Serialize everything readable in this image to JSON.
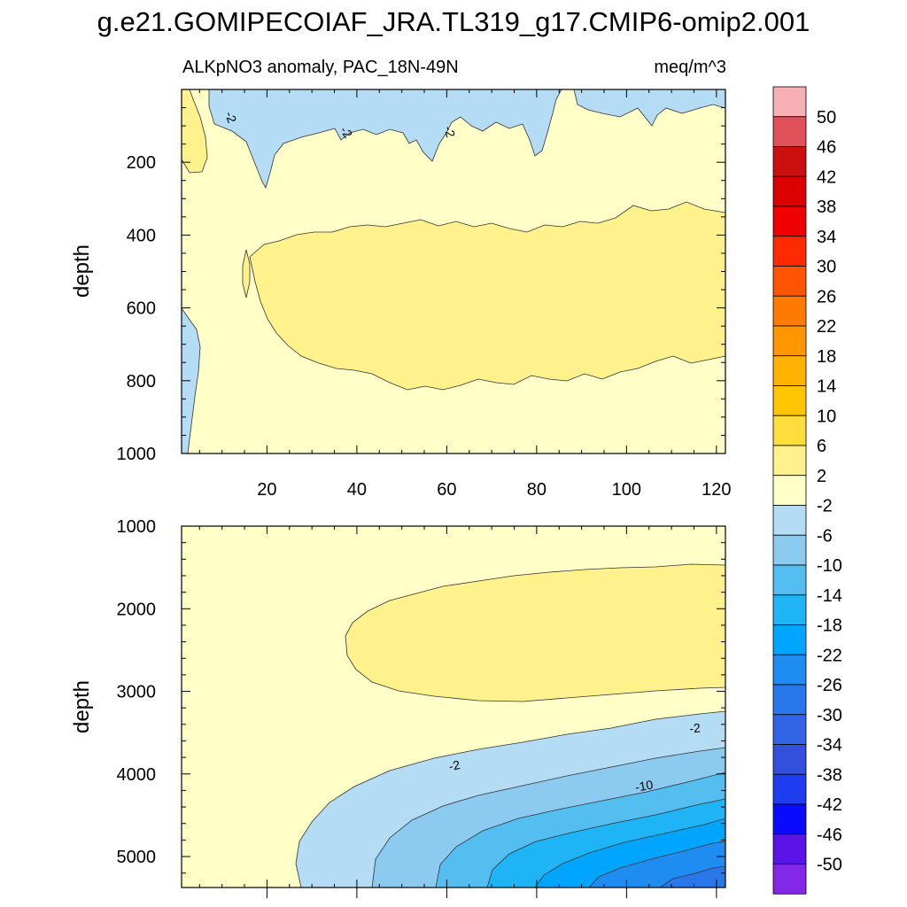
{
  "chart_data": {
    "type": "heatmap",
    "title": "g.e21.GOMIPECOIAF_JRA.TL319_g17.CMIP6-omip2.001",
    "subtitle": "ALKpNO3 anomaly, PAC_18N-49N",
    "units": "meq/m^3",
    "xlabel": "",
    "ylabel": "depth",
    "xlim": [
      1,
      122
    ],
    "x_ticks": [
      "20",
      "40",
      "60",
      "80",
      "100",
      "120"
    ],
    "panels": [
      {
        "name": "upper",
        "ylim": [
          0,
          1000
        ],
        "y_ticks": [
          "200",
          "400",
          "600",
          "800",
          "1000"
        ],
        "contour_labels": [
          "-2",
          "-2",
          "-2"
        ]
      },
      {
        "name": "lower",
        "ylim": [
          1000,
          5375
        ],
        "y_ticks": [
          "1000",
          "2000",
          "3000",
          "4000",
          "5000"
        ],
        "contour_labels": [
          "-2",
          "-2",
          "-10"
        ]
      }
    ],
    "colorbar": {
      "levels": [
        "50",
        "46",
        "42",
        "38",
        "34",
        "30",
        "26",
        "22",
        "18",
        "14",
        "10",
        "6",
        "2",
        "-2",
        "-6",
        "-10",
        "-14",
        "-18",
        "-22",
        "-26",
        "-30",
        "-34",
        "-38",
        "-42",
        "-46",
        "-50"
      ],
      "colors": [
        "#F8B0B4",
        "#E05058",
        "#CC1010",
        "#DC0000",
        "#F00000",
        "#FF2A00",
        "#FF5500",
        "#FF7A00",
        "#FF9600",
        "#FFB200",
        "#FFC500",
        "#FFDD3C",
        "#FFF28C",
        "#FFFFC8",
        "#B4DCF5",
        "#8CCAEF",
        "#55BEF0",
        "#1EB4F5",
        "#00A5FF",
        "#1E8CF0",
        "#2878EB",
        "#3264E6",
        "#3250DC",
        "#1E3CF0",
        "#0A0AFF",
        "#5A14E6",
        "#8228E6"
      ]
    }
  }
}
